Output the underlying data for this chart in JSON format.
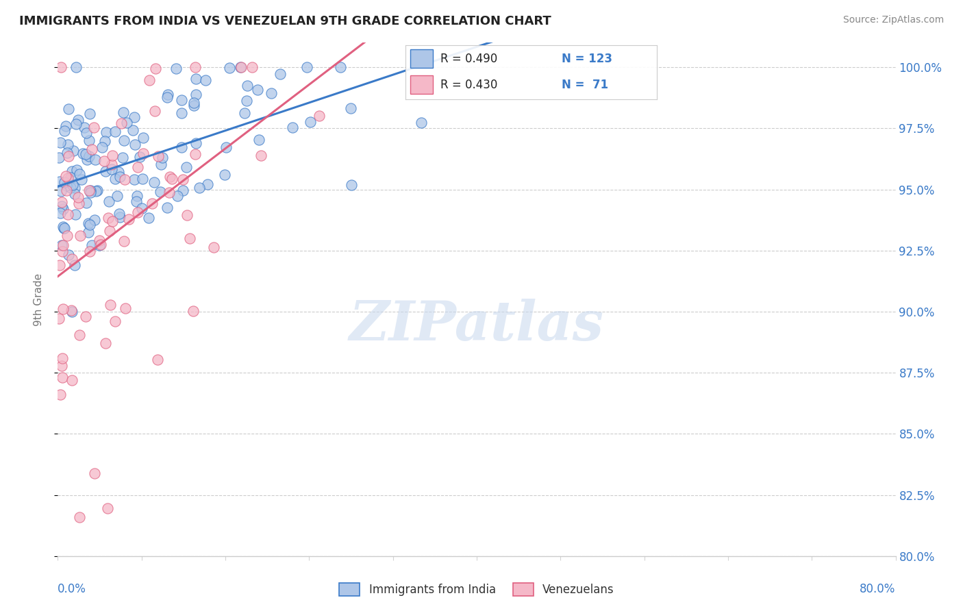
{
  "title": "IMMIGRANTS FROM INDIA VS VENEZUELAN 9TH GRADE CORRELATION CHART",
  "source_text": "Source: ZipAtlas.com",
  "ylabel": "9th Grade",
  "yaxis_labels": [
    "80.0%",
    "82.5%",
    "85.0%",
    "87.5%",
    "90.0%",
    "92.5%",
    "95.0%",
    "97.5%",
    "100.0%"
  ],
  "india_color": "#aec6e8",
  "venezuela_color": "#f5b8c8",
  "india_line_color": "#3a7ac8",
  "venezuela_line_color": "#e06080",
  "india_R": 0.49,
  "india_N": 123,
  "venezuela_R": 0.43,
  "venezuela_N": 71,
  "legend_label_india": "Immigrants from India",
  "legend_label_venezuela": "Venezuelans",
  "watermark": "ZIPatlas",
  "xlim": [
    0,
    80
  ],
  "ylim": [
    80,
    101
  ],
  "ytick_vals": [
    80,
    82.5,
    85,
    87.5,
    90,
    92.5,
    95,
    97.5,
    100
  ]
}
